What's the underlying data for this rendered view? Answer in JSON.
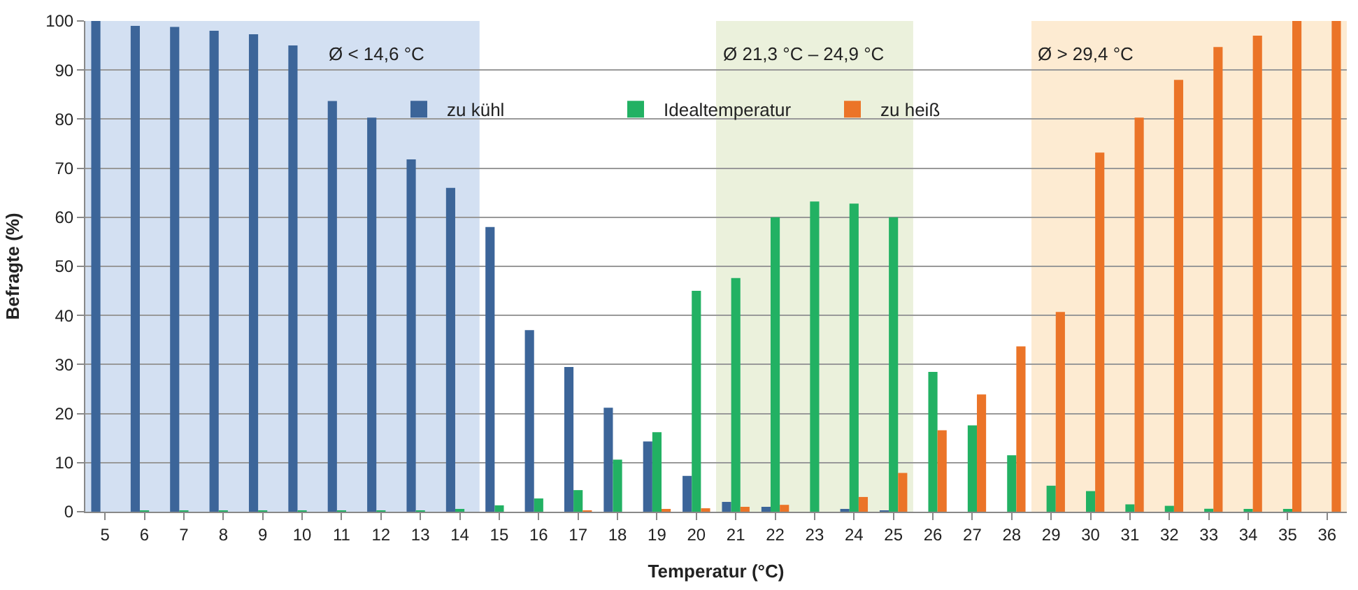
{
  "chart_data": {
    "type": "bar",
    "xlabel": "Temperatur (°C)",
    "ylabel": "Befragte (%)",
    "categories": [
      "5",
      "6",
      "7",
      "8",
      "9",
      "10",
      "11",
      "12",
      "13",
      "14",
      "15",
      "16",
      "17",
      "18",
      "19",
      "20",
      "21",
      "22",
      "23",
      "24",
      "25",
      "26",
      "27",
      "28",
      "29",
      "30",
      "31",
      "32",
      "33",
      "34",
      "35",
      "36"
    ],
    "series": [
      {
        "name": "zu kühl",
        "color": "#3c6599",
        "values": [
          100,
          99,
          98.8,
          98,
          97.3,
          95,
          83.7,
          80.3,
          71.8,
          66,
          58,
          37,
          29.5,
          21.2,
          14.3,
          7.3,
          2,
          1,
          0,
          0.5,
          0.2,
          0,
          0,
          0,
          0,
          0,
          0,
          0,
          0,
          0,
          0,
          0
        ]
      },
      {
        "name": "Idealtemperatur",
        "color": "#22b163",
        "values": [
          0,
          0.2,
          0.2,
          0.2,
          0.2,
          0.2,
          0.2,
          0.2,
          0.2,
          0.3,
          1.3,
          2.7,
          4.4,
          10.6,
          16.2,
          45,
          47.6,
          60,
          63.2,
          62.8,
          60,
          28.5,
          17.6,
          11.5,
          5.3,
          4.2,
          1.5,
          1.2,
          0.6,
          0.5,
          0.5,
          0
        ]
      },
      {
        "name": "zu heiß",
        "color": "#eb7428",
        "values": [
          0,
          0,
          0,
          0,
          0,
          0,
          0,
          0,
          0,
          0,
          0,
          0,
          0.2,
          0,
          0.3,
          0.7,
          1,
          1.4,
          0,
          3,
          7.9,
          16.6,
          23.9,
          33.7,
          40.7,
          73.2,
          80.3,
          88,
          94.7,
          97,
          100,
          100
        ]
      }
    ],
    "ylim": [
      0,
      100
    ],
    "yticks": [
      0,
      10,
      20,
      30,
      40,
      50,
      60,
      70,
      80,
      90,
      100
    ],
    "grid": "y",
    "legend": "top",
    "bands": [
      {
        "axis": "x",
        "from": "5",
        "to": "14",
        "label": "Ø < 14,6 °C",
        "color": "#d3e0f2"
      },
      {
        "axis": "x",
        "from": "21",
        "to": "25",
        "label": "Ø 21,3 °C – 24,9 °C",
        "color": "#ebf1dc"
      },
      {
        "axis": "x",
        "from": "29",
        "to": "36",
        "label": "Ø > 29,4 °C",
        "color": "#fdebd2"
      }
    ]
  }
}
